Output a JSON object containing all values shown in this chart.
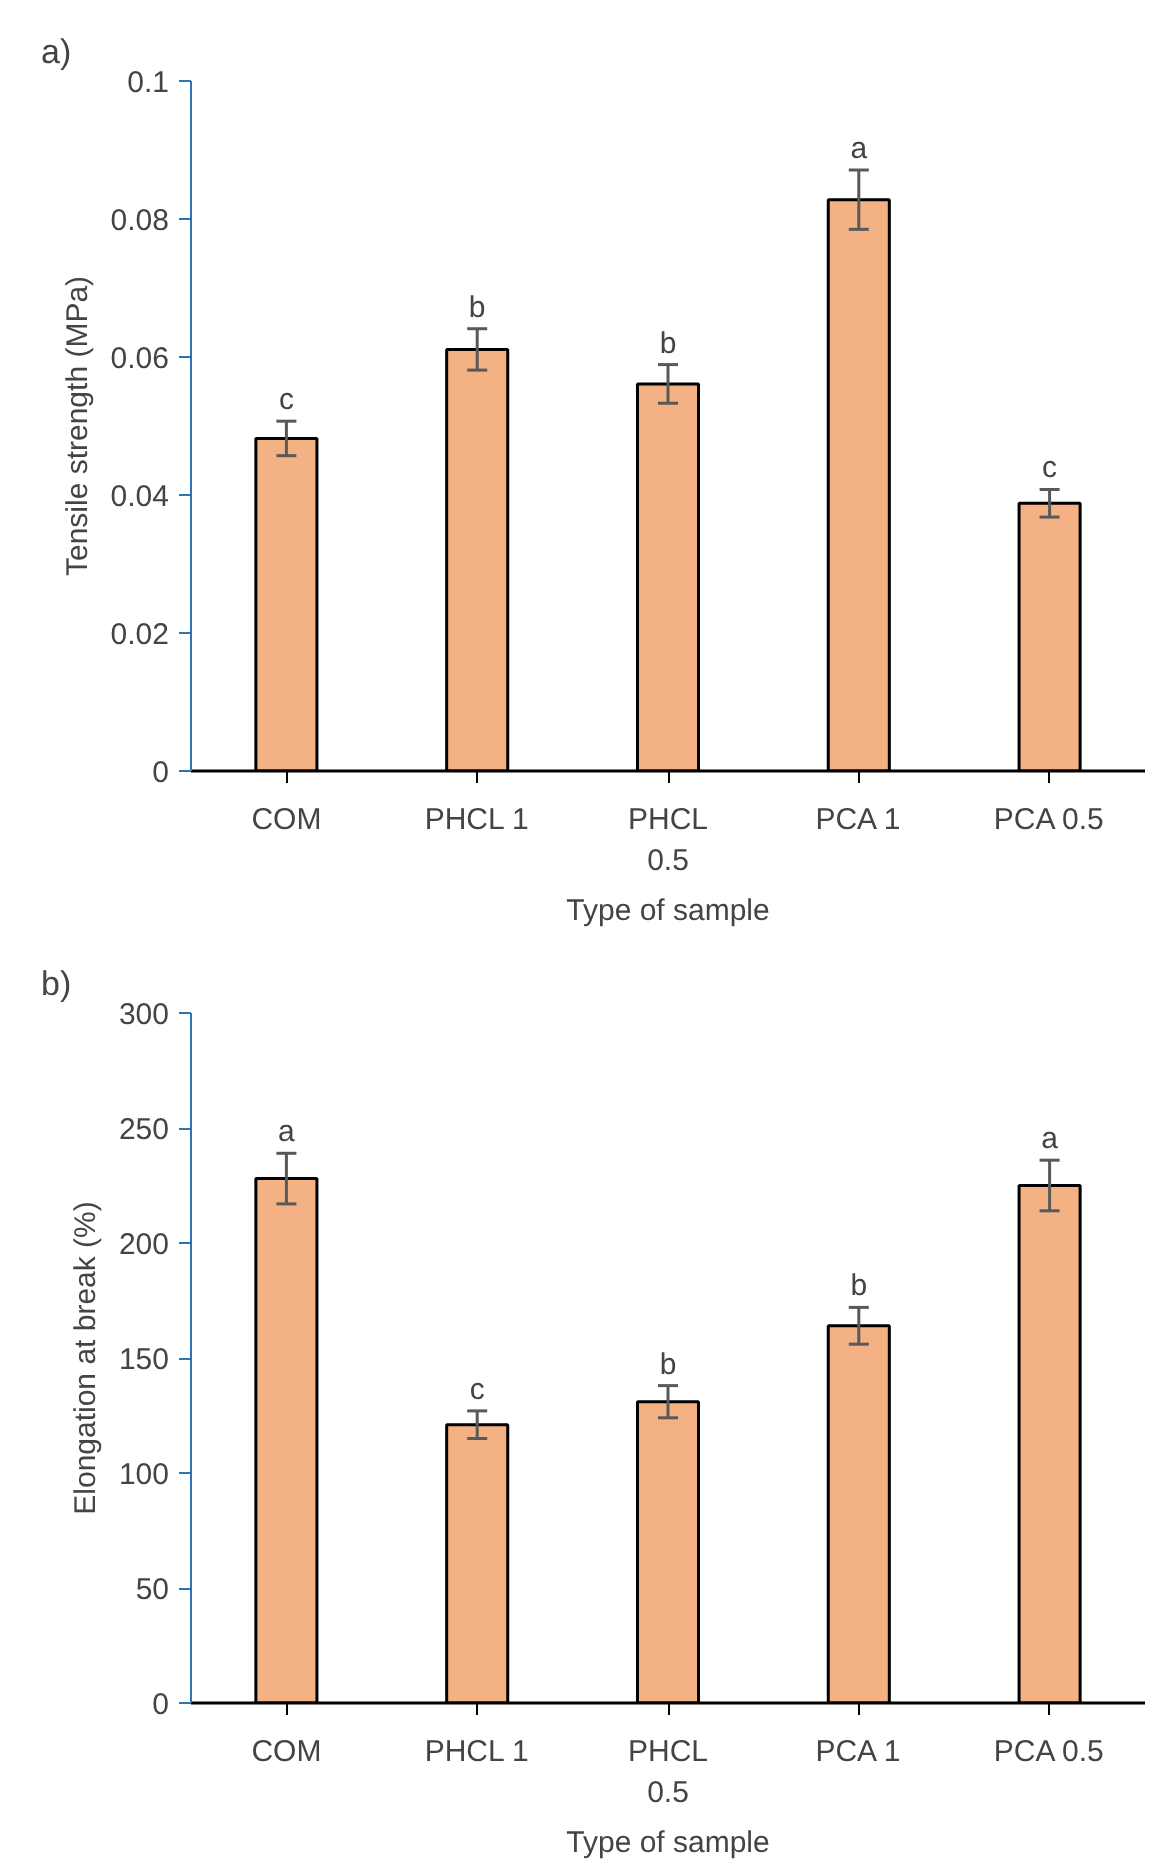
{
  "chart_data": [
    {
      "type": "bar",
      "categories": [
        "COM",
        "PHCL 1",
        "PHCL 0.5",
        "PCA 1",
        "PCA 0.5"
      ],
      "xlabel": "Type of sample",
      "ylabel": "Tensile strength (MPa)",
      "series": [
        {
          "color": "#f4b183",
          "values": [
            0.0482,
            0.0611,
            0.0561,
            0.0828,
            0.0388
          ],
          "errors": [
            0.0025,
            0.003,
            0.0028,
            0.0043,
            0.002
          ]
        }
      ],
      "ylim": [
        0,
        0.1
      ],
      "yticks": [
        0,
        0.02,
        0.04,
        0.06,
        0.08,
        0.1
      ],
      "grid": false,
      "annotations": [
        "a)",
        {
          "text": "c",
          "x": "COM",
          "y": 0.0507
        },
        {
          "text": "b",
          "x": "PHCL 1",
          "y": 0.0641
        },
        {
          "text": "b",
          "x": "PHCL 0.5",
          "y": 0.0589
        },
        {
          "text": "a",
          "x": "PCA 1",
          "y": 0.0871
        },
        {
          "text": "c",
          "x": "PCA 0.5",
          "y": 0.0408
        }
      ]
    },
    {
      "type": "bar",
      "categories": [
        "COM",
        "PHCL 1",
        "PHCL 0.5",
        "PCA 1",
        "PCA 0.5"
      ],
      "xlabel": "Type of sample",
      "ylabel": "Elongation at break (%)",
      "series": [
        {
          "color": "#f4b183",
          "values": [
            228,
            121,
            131,
            164,
            225
          ],
          "errors": [
            11,
            6,
            7,
            8,
            11
          ]
        }
      ],
      "ylim": [
        0,
        300
      ],
      "yticks": [
        0,
        50,
        100,
        150,
        200,
        250,
        300
      ],
      "grid": false,
      "annotations": [
        "b)",
        {
          "text": "a",
          "x": "COM",
          "y": 239
        },
        {
          "text": "c",
          "x": "PHCL 1",
          "y": 127
        },
        {
          "text": "b",
          "x": "PHCL 0.5",
          "y": 138
        },
        {
          "text": "b",
          "x": "PCA 1",
          "y": 172
        },
        {
          "text": "a",
          "x": "PCA 0.5",
          "y": 236
        }
      ]
    }
  ]
}
